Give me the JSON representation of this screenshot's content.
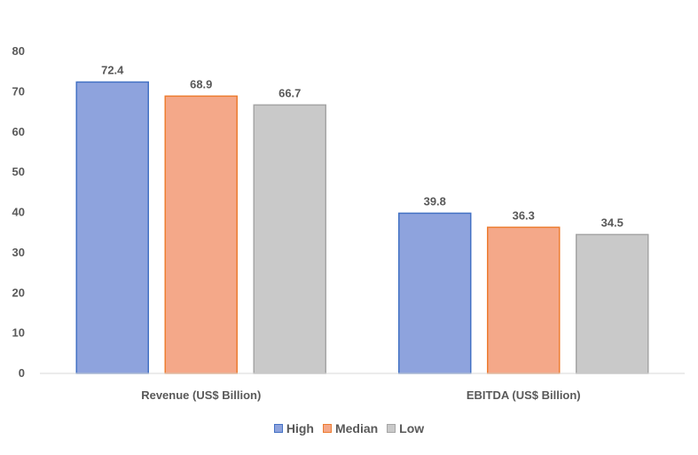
{
  "chart_data": {
    "type": "bar",
    "categories": [
      "Revenue (US$ Billion)",
      "EBITDA (US$ Billion)"
    ],
    "series": [
      {
        "name": "High",
        "values": [
          72.4,
          39.8
        ],
        "color": "#8EA3DD",
        "edge": "#4472C4"
      },
      {
        "name": "Median",
        "values": [
          68.9,
          36.3
        ],
        "color": "#F4A889",
        "edge": "#ED7D31"
      },
      {
        "name": "Low",
        "values": [
          66.7,
          34.5
        ],
        "color": "#C9C9C9",
        "edge": "#A5A5A5"
      }
    ],
    "yticks": [
      "0",
      "10",
      "20",
      "30",
      "40",
      "50",
      "60",
      "70",
      "80"
    ],
    "ylim": [
      0,
      80
    ],
    "grid": false,
    "legend_position": "bottom"
  }
}
